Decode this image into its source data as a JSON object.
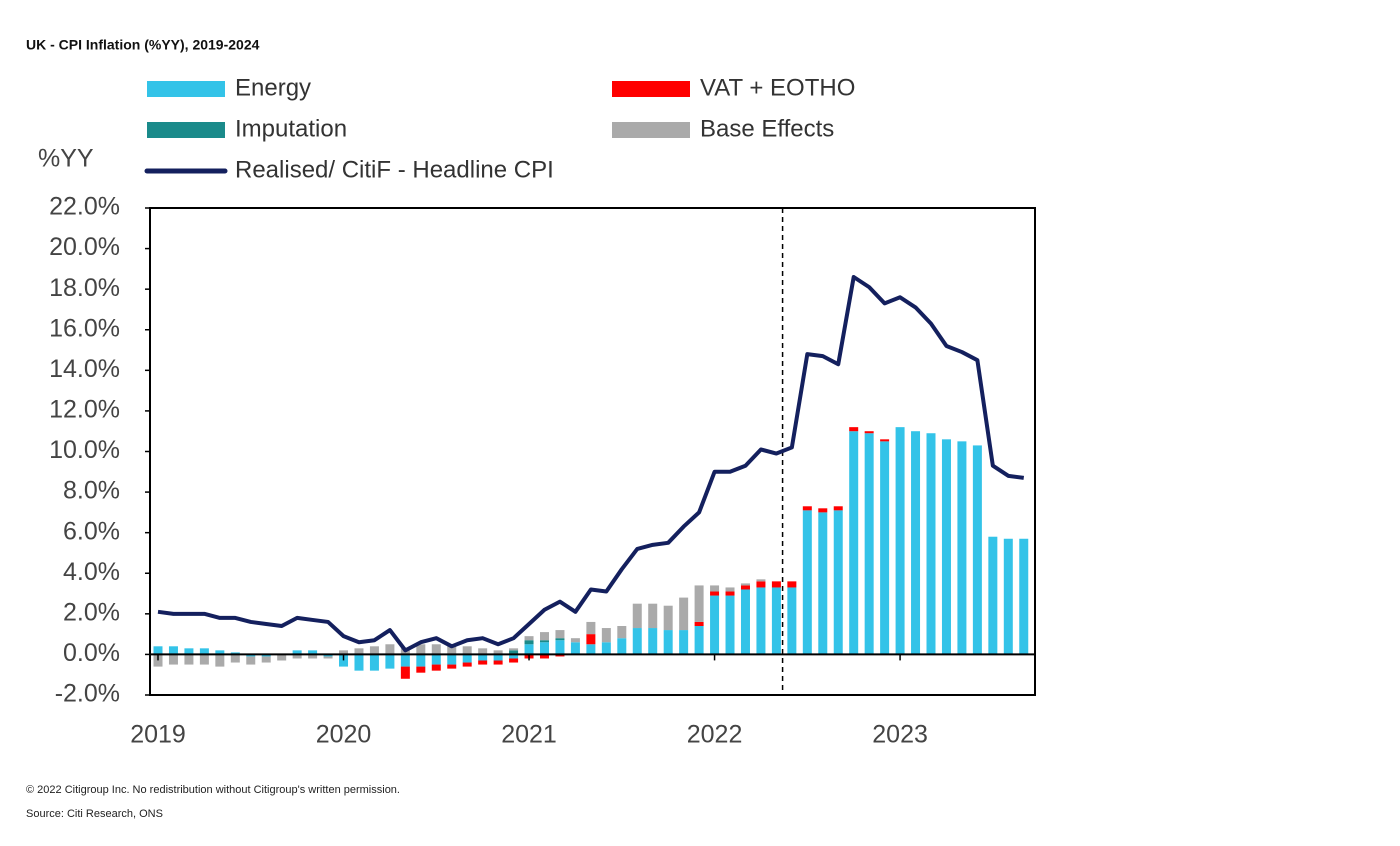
{
  "chart_data": {
    "type": "bar",
    "title": "UK - CPI Inflation (%YY), 2019-2024",
    "y_label": "%YY",
    "categories": [
      "2019",
      null,
      null,
      null,
      null,
      null,
      null,
      null,
      null,
      null,
      null,
      null,
      "2020",
      null,
      null,
      null,
      null,
      null,
      null,
      null,
      null,
      null,
      null,
      null,
      "2021",
      null,
      null,
      null,
      null,
      null,
      null,
      null,
      null,
      null,
      null,
      null,
      "2022",
      null,
      null,
      null,
      null,
      null,
      null,
      null,
      null,
      null,
      null,
      null,
      "2023",
      null,
      null,
      null,
      null,
      null,
      null,
      null,
      null
    ],
    "series": [
      {
        "name": "Energy",
        "color": "#33c3e8",
        "values": [
          0.4,
          0.4,
          0.3,
          0.3,
          0.2,
          0.1,
          -0.1,
          -0.1,
          0.0,
          0.2,
          0.2,
          -0.1,
          -0.6,
          -0.8,
          -0.8,
          -0.7,
          -0.6,
          -0.6,
          -0.5,
          -0.5,
          -0.4,
          -0.3,
          -0.3,
          -0.2,
          0.5,
          0.6,
          0.7,
          0.6,
          0.5,
          0.6,
          0.8,
          1.3,
          1.3,
          1.2,
          1.2,
          1.4,
          2.9,
          2.9,
          3.2,
          3.3,
          3.3,
          3.3,
          7.1,
          7.0,
          7.1,
          11.0,
          10.9,
          10.5,
          11.2,
          11.0,
          10.9,
          10.6,
          10.5,
          10.3,
          5.8,
          5.7,
          5.7
        ]
      },
      {
        "name": "VAT + EOTHO",
        "color": "#ff0000",
        "values": [
          0,
          0,
          0,
          0,
          0,
          0,
          0,
          0,
          0,
          0,
          0,
          0,
          0,
          0,
          0,
          0,
          -0.6,
          -0.3,
          -0.3,
          -0.2,
          -0.2,
          -0.2,
          -0.2,
          -0.2,
          -0.2,
          -0.2,
          -0.1,
          0,
          0.5,
          0,
          0,
          0,
          0,
          0,
          0,
          0.2,
          0.2,
          0.2,
          0.2,
          0.3,
          0.3,
          0.3,
          0.2,
          0.2,
          0.2,
          0.2,
          0.1,
          0.1,
          0,
          0,
          0,
          0,
          0,
          0,
          0,
          0,
          0
        ]
      },
      {
        "name": "Imputation",
        "color": "#1a8a8a",
        "values": [
          0,
          0,
          0,
          0,
          0,
          0,
          0,
          0,
          0,
          0,
          0,
          0,
          0,
          0,
          0,
          0,
          0,
          0,
          0,
          0,
          0,
          0,
          0,
          0.2,
          0.2,
          0.1,
          0.1,
          0,
          0,
          0,
          0,
          0,
          0,
          0,
          0,
          0,
          0,
          0,
          0,
          0,
          0,
          0,
          0,
          0,
          0,
          0,
          0,
          0,
          0,
          0,
          0,
          0,
          0,
          0,
          0,
          0,
          0
        ]
      },
      {
        "name": "Base Effects",
        "color": "#aaaaaa",
        "values": [
          -0.6,
          -0.5,
          -0.5,
          -0.5,
          -0.6,
          -0.4,
          -0.4,
          -0.3,
          -0.3,
          -0.2,
          -0.2,
          -0.1,
          0.2,
          0.3,
          0.4,
          0.5,
          0.3,
          0.5,
          0.5,
          0.5,
          0.4,
          0.3,
          0.2,
          0.1,
          0.2,
          0.4,
          0.4,
          0.2,
          0.6,
          0.7,
          0.6,
          1.2,
          1.2,
          1.2,
          1.6,
          1.8,
          0.3,
          0.2,
          0.1,
          0.1,
          0,
          0,
          0,
          0,
          0,
          0,
          0,
          0,
          0,
          0,
          0,
          0,
          0,
          0,
          0,
          0,
          0
        ]
      },
      {
        "name": "Realised/ CitiF - Headline CPI",
        "type": "line",
        "color": "#14205e",
        "values": [
          2.1,
          2.0,
          2.0,
          2.0,
          1.8,
          1.8,
          1.6,
          1.5,
          1.4,
          1.8,
          1.7,
          1.6,
          0.9,
          0.6,
          0.7,
          1.2,
          0.2,
          0.6,
          0.8,
          0.4,
          0.7,
          0.8,
          0.5,
          0.8,
          1.5,
          2.2,
          2.6,
          2.1,
          3.2,
          3.1,
          4.2,
          5.2,
          5.4,
          5.5,
          6.3,
          7.0,
          9.0,
          9.0,
          9.3,
          10.1,
          9.9,
          10.2,
          14.8,
          14.7,
          14.3,
          18.6,
          18.1,
          17.3,
          17.6,
          17.1,
          16.3,
          15.2,
          14.9,
          14.5,
          9.3,
          8.8,
          8.7
        ]
      }
    ],
    "ylim": [
      -2,
      22
    ],
    "yticks": [
      {
        "value": -2,
        "label": "-2.0%"
      },
      {
        "value": 0,
        "label": "0.0%"
      },
      {
        "value": 2,
        "label": "2.0%"
      },
      {
        "value": 4,
        "label": "4.0%"
      },
      {
        "value": 6,
        "label": "6.0%"
      },
      {
        "value": 8,
        "label": "8.0%"
      },
      {
        "value": 10,
        "label": "10.0%"
      },
      {
        "value": 12,
        "label": "12.0%"
      },
      {
        "value": 14,
        "label": "14.0%"
      },
      {
        "value": 16,
        "label": "16.0%"
      },
      {
        "value": 18,
        "label": "18.0%"
      },
      {
        "value": 20,
        "label": "20.0%"
      },
      {
        "value": 22,
        "label": "22.0%"
      }
    ],
    "grid": false
  },
  "footer": {
    "copyright": "© 2022 Citigroup Inc. No redistribution without Citigroup's written permission.",
    "source": "Source: Citi Research, ONS"
  }
}
